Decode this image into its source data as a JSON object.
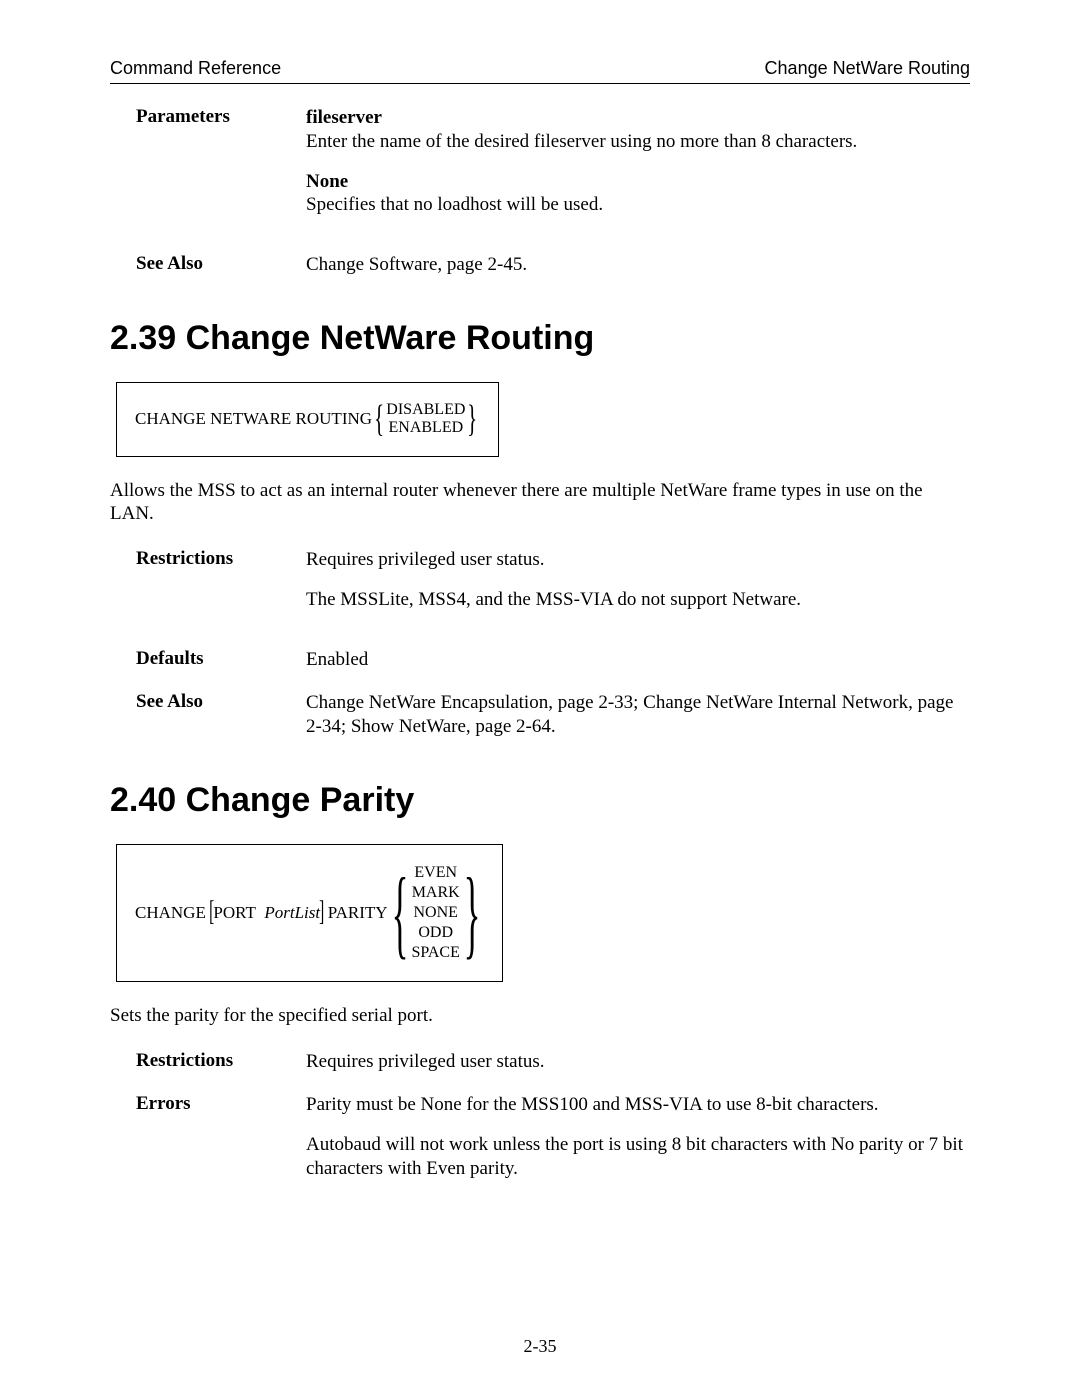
{
  "header": {
    "left": "Command Reference",
    "right": "Change NetWare Routing"
  },
  "top_defs": {
    "parameters": {
      "label": "Parameters",
      "item1_name": "fileserver",
      "item1_desc": "Enter the name of the desired fileserver using no more than 8 characters.",
      "item2_name": "None",
      "item2_desc": "Specifies that no loadhost will be used."
    },
    "see_also": {
      "label": "See Also",
      "text": "Change Software, page 2-45."
    }
  },
  "section239": {
    "title": "2.39   Change NetWare Routing",
    "syntax_prefix": "CHANGE NETWARE ROUTING",
    "options": [
      "DISABLED",
      "ENABLED"
    ],
    "desc": "Allows the MSS to act as an internal router whenever there are multiple NetWare frame types in use on the LAN.",
    "restrictions_label": "Restrictions",
    "restrictions_1": "Requires privileged user status.",
    "restrictions_2": "The MSSLite, MSS4, and the MSS-VIA do not support Netware.",
    "defaults_label": "Defaults",
    "defaults_text": "Enabled",
    "see_also_label": "See Also",
    "see_also_text": "Change NetWare Encapsulation, page 2-33; Change NetWare Internal Network, page 2-34; Show NetWare, page 2-64."
  },
  "section240": {
    "title": "2.40   Change Parity",
    "syntax_prefix": "CHANGE",
    "syntax_port": "PORT",
    "syntax_portlist": "PortList",
    "syntax_parity": "PARITY",
    "options": [
      "EVEN",
      "MARK",
      "NONE",
      "ODD",
      "SPACE"
    ],
    "desc": "Sets the parity for the specified serial port.",
    "restrictions_label": "Restrictions",
    "restrictions_text": "Requires privileged user status.",
    "errors_label": "Errors",
    "errors_1": "Parity must be None for the MSS100 and MSS-VIA to use 8-bit characters.",
    "errors_2": "Autobaud will not work unless the port is using 8 bit characters with No parity or 7 bit characters with Even parity."
  },
  "page_number": "2-35"
}
